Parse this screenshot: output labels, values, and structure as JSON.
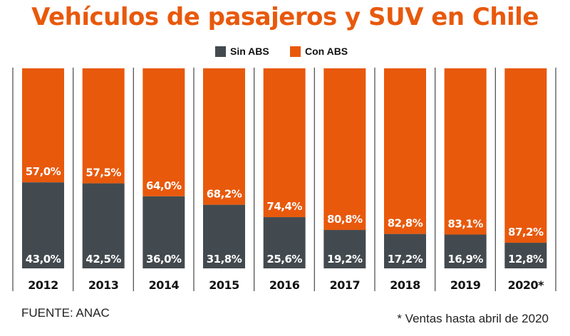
{
  "chart_data": {
    "type": "bar",
    "stacked": true,
    "percent": true,
    "title": "Vehículos de pasajeros y SUV en Chile",
    "xlabel": "",
    "ylabel": "",
    "ylim": [
      0,
      100
    ],
    "grid": false,
    "legend_position": "top-center",
    "categories": [
      "2012",
      "2013",
      "2014",
      "2015",
      "2016",
      "2017",
      "2018",
      "2019",
      "2020*"
    ],
    "series": [
      {
        "name": "Sin ABS",
        "color": "#434A4F",
        "values": [
          43.0,
          42.5,
          36.0,
          31.8,
          25.6,
          19.2,
          17.2,
          16.9,
          12.8
        ],
        "labels": [
          "43,0%",
          "42,5%",
          "36,0%",
          "31,8%",
          "25,6%",
          "19,2%",
          "17,2%",
          "16,9%",
          "12,8%"
        ]
      },
      {
        "name": "Con ABS",
        "color": "#E8590C",
        "values": [
          57.0,
          57.5,
          64.0,
          68.2,
          74.4,
          80.8,
          82.8,
          83.1,
          87.2
        ],
        "labels": [
          "57,0%",
          "57,5%",
          "64,0%",
          "68,2%",
          "74,4%",
          "80,8%",
          "82,8%",
          "83,1%",
          "87,2%"
        ]
      }
    ],
    "annotations": {
      "source": "FUENTE: ANAC",
      "footnote": "* Ventas hasta abril de 2020"
    }
  },
  "legend": {
    "items": [
      {
        "label": "Sin ABS",
        "color": "#434A4F"
      },
      {
        "label": "Con ABS",
        "color": "#E8590C"
      }
    ]
  }
}
